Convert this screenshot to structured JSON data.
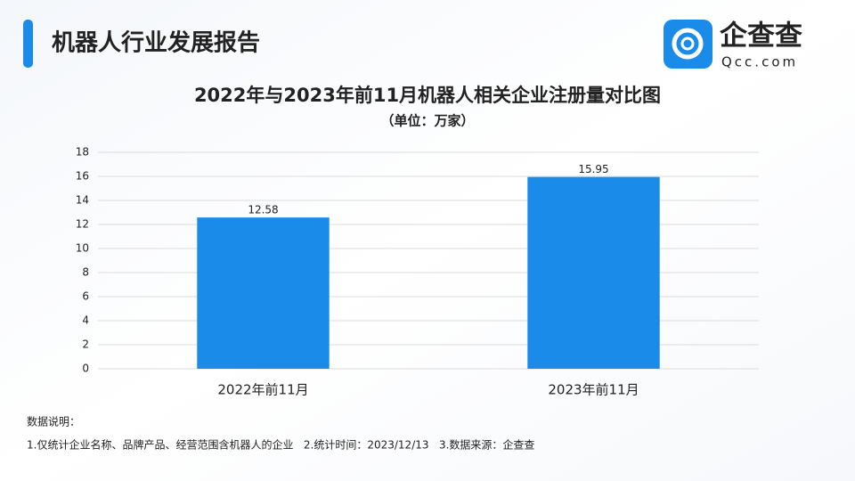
{
  "header": {
    "title": "机器人行业发展报告"
  },
  "logo": {
    "name": "企查查",
    "domain": "Qcc.com"
  },
  "chart_data": {
    "type": "bar",
    "title": "2022年与2023年前11月机器人相关企业注册量对比图",
    "subtitle": "（单位：万家）",
    "categories": [
      "2022年前11月",
      "2023年前11月"
    ],
    "values": [
      12.58,
      15.95
    ],
    "color": "#1a8be8",
    "ylim": [
      0,
      18
    ],
    "yticks": [
      0,
      2,
      4,
      6,
      8,
      10,
      12,
      14,
      16,
      18
    ],
    "grid": true
  },
  "notes": {
    "title": "数据说明：",
    "text": "1.仅统计企业名称、品牌产品、经营范围含机器人的企业   2.统计时间：2023/12/13   3.数据来源：企查查"
  }
}
